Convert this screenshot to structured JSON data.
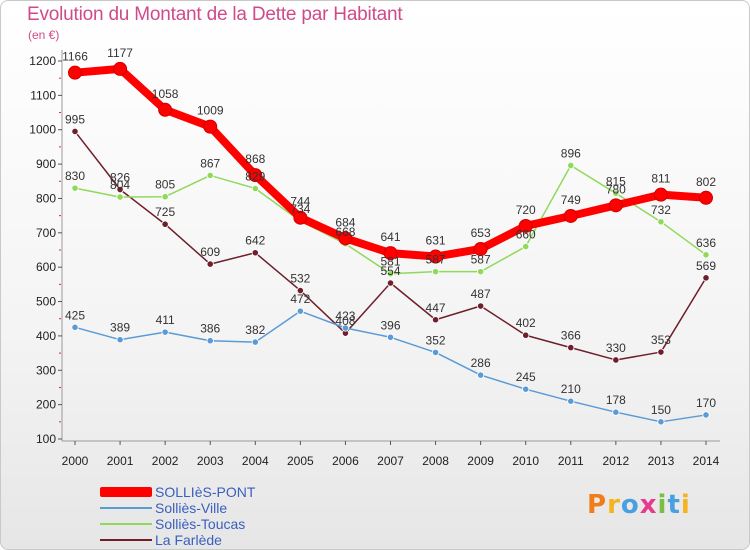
{
  "title": "Evolution du Montant de la Dette par Habitant",
  "unit": "(en €)",
  "logo": "Proxiti",
  "chart_data": {
    "type": "line",
    "title": "Evolution du Montant de la Dette par Habitant",
    "ylabel": "(en €)",
    "x": [
      2000,
      2001,
      2002,
      2003,
      2004,
      2005,
      2006,
      2007,
      2008,
      2009,
      2010,
      2011,
      2012,
      2013,
      2014
    ],
    "ylim": [
      100,
      1200
    ],
    "yticks": [
      100,
      200,
      300,
      400,
      500,
      600,
      700,
      800,
      900,
      1000,
      1100,
      1200
    ],
    "grid": false,
    "legend_position": "bottom-left",
    "series": [
      {
        "name": "SOLLIèS-PONT",
        "color": "#ff0000",
        "values": [
          1166,
          1177,
          1058,
          1009,
          868,
          744,
          684,
          641,
          631,
          653,
          720,
          749,
          780,
          811,
          802
        ]
      },
      {
        "name": "Solliès-Ville",
        "color": "#5b9bd5",
        "values": [
          425,
          389,
          411,
          386,
          382,
          472,
          423,
          396,
          352,
          286,
          245,
          210,
          178,
          150,
          170
        ]
      },
      {
        "name": "Solliès-Toucas",
        "color": "#8fd95b",
        "values": [
          830,
          804,
          805,
          867,
          829,
          734,
          668,
          581,
          587,
          587,
          660,
          896,
          815,
          732,
          636
        ]
      },
      {
        "name": "La Farlède",
        "color": "#6e1f2a",
        "values": [
          995,
          826,
          725,
          609,
          642,
          532,
          408,
          554,
          447,
          487,
          402,
          366,
          330,
          353,
          569
        ]
      }
    ]
  }
}
